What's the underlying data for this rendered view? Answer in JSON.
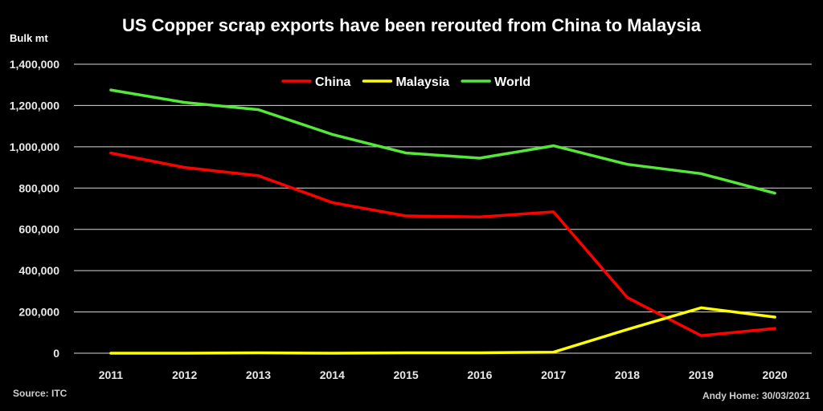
{
  "chart_data": {
    "type": "line",
    "title": "US Copper scrap exports have been rerouted from China to Malaysia",
    "ylabel": "Bulk mt",
    "xlabel": "",
    "ylim": [
      0,
      1400000
    ],
    "yticks": [
      0,
      200000,
      400000,
      600000,
      800000,
      1000000,
      1200000,
      1400000
    ],
    "ytick_labels": [
      "0",
      "200,000",
      "400,000",
      "600,000",
      "800,000",
      "1,000,000",
      "1,200,000",
      "1,400,000"
    ],
    "categories": [
      "2011",
      "2012",
      "2013",
      "2014",
      "2015",
      "2016",
      "2017",
      "2018",
      "2019",
      "2020"
    ],
    "grid": true,
    "legend_position": "top-center",
    "series": [
      {
        "name": "China",
        "color": "#ff0000",
        "values": [
          970000,
          900000,
          860000,
          730000,
          665000,
          660000,
          685000,
          270000,
          85000,
          120000
        ]
      },
      {
        "name": "Malaysia",
        "color": "#ffff00",
        "values": [
          0,
          0,
          2000,
          0,
          2000,
          2000,
          5000,
          115000,
          220000,
          175000
        ]
      },
      {
        "name": "World",
        "color": "#55e83a",
        "values": [
          1275000,
          1215000,
          1180000,
          1060000,
          970000,
          945000,
          1005000,
          915000,
          870000,
          775000
        ]
      }
    ]
  },
  "footer": {
    "source": "Source: ITC",
    "credit": "Andy Home: 30/03/2021"
  }
}
